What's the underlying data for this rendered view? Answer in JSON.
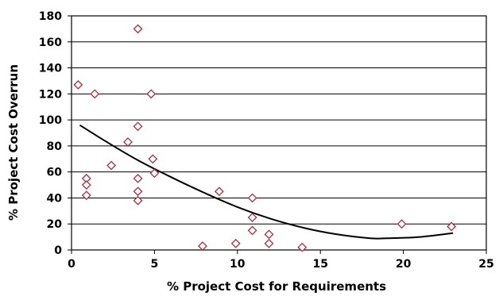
{
  "chart_data": {
    "type": "scatter",
    "title": "",
    "xlabel": "% Project Cost for Requirements",
    "ylabel": "% Project Cost Overrun",
    "xlim": [
      0,
      25
    ],
    "ylim": [
      0,
      180
    ],
    "x_ticks": [
      "0",
      "5",
      "10",
      "15",
      "20",
      "25"
    ],
    "y_ticks": [
      "0",
      "20",
      "40",
      "60",
      "80",
      "100",
      "120",
      "140",
      "160",
      "180"
    ],
    "grid": "horizontal",
    "legend": "none",
    "marker": "diamond",
    "marker_color": "#b32a3a",
    "trend_color": "#000000",
    "points": [
      {
        "x": 0.4,
        "y": 127
      },
      {
        "x": 1.4,
        "y": 120
      },
      {
        "x": 4.0,
        "y": 170
      },
      {
        "x": 4.8,
        "y": 120
      },
      {
        "x": 4.0,
        "y": 95
      },
      {
        "x": 3.4,
        "y": 83
      },
      {
        "x": 4.9,
        "y": 70
      },
      {
        "x": 2.4,
        "y": 65
      },
      {
        "x": 5.0,
        "y": 59
      },
      {
        "x": 0.9,
        "y": 55
      },
      {
        "x": 4.0,
        "y": 55
      },
      {
        "x": 0.9,
        "y": 50
      },
      {
        "x": 0.9,
        "y": 42
      },
      {
        "x": 4.0,
        "y": 45
      },
      {
        "x": 4.0,
        "y": 38
      },
      {
        "x": 8.9,
        "y": 45
      },
      {
        "x": 10.9,
        "y": 40
      },
      {
        "x": 10.9,
        "y": 25
      },
      {
        "x": 10.9,
        "y": 15
      },
      {
        "x": 11.9,
        "y": 12
      },
      {
        "x": 11.9,
        "y": 5
      },
      {
        "x": 9.9,
        "y": 5
      },
      {
        "x": 7.9,
        "y": 3
      },
      {
        "x": 13.9,
        "y": 2
      },
      {
        "x": 19.9,
        "y": 20
      },
      {
        "x": 22.9,
        "y": 18
      }
    ],
    "trendline": {
      "type": "polynomial-2",
      "x": [
        0.5,
        2,
        4,
        6,
        8,
        10,
        12,
        14,
        16,
        18,
        19,
        21,
        23
      ],
      "y": [
        96,
        84,
        69,
        56,
        44,
        33,
        24,
        17,
        12,
        9,
        9,
        10,
        13
      ]
    }
  }
}
